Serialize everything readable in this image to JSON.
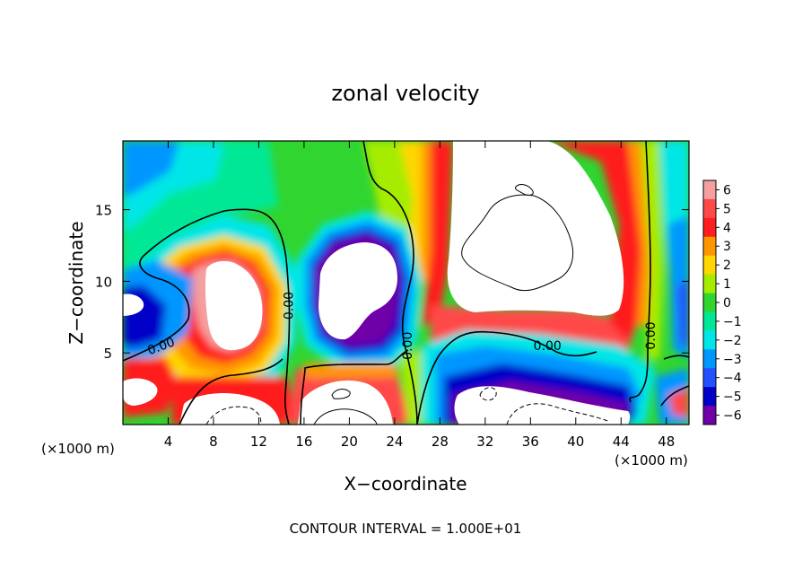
{
  "chart_data": {
    "type": "heatmap",
    "title": "zonal velocity",
    "xlabel": "X−coordinate",
    "ylabel": "Z−coordinate",
    "x_unit": "(×1000 m)",
    "x_ticks": [
      4,
      8,
      12,
      16,
      20,
      24,
      28,
      32,
      36,
      40,
      44,
      48
    ],
    "y_ticks": [
      5,
      10,
      15
    ],
    "xlim": [
      0,
      50
    ],
    "ylim": [
      0,
      19.8
    ],
    "colorbar": {
      "ticks": [
        6,
        5,
        4,
        3,
        2,
        1,
        0,
        "−1",
        "−2",
        "−3",
        "−4",
        "−5",
        "−6"
      ],
      "range": [
        -6,
        6
      ]
    },
    "contour_labels": [
      {
        "text": "0.00",
        "x": 3.5,
        "z": 5.2
      },
      {
        "text": "0.00",
        "x": 15,
        "z": 8.3
      },
      {
        "text": "0.00",
        "x": 25.5,
        "z": 5.5
      },
      {
        "text": "0.00",
        "x": 37.5,
        "z": 5.2
      },
      {
        "text": "0.00",
        "x": 47,
        "z": 6.2
      }
    ],
    "footer": "CONTOUR INTERVAL = 1.000E+01",
    "colors": {
      "c6": "#f4a0a0",
      "c5": "#ff4848",
      "c4": "#ff1e1e",
      "c3": "#ff9600",
      "c2": "#ffd600",
      "c1": "#a6ec00",
      "c0": "#30d530",
      "cm1": "#00e896",
      "cm2": "#00e6e6",
      "cm3": "#0096ff",
      "cm4": "#2450ff",
      "cm5": "#0000c8",
      "cm6": "#7000a8"
    }
  }
}
